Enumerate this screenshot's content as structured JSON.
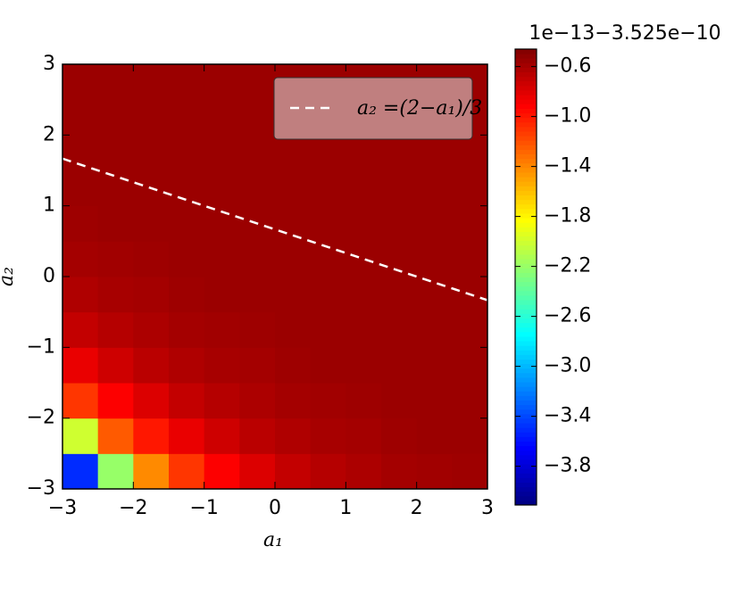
{
  "chart_data": {
    "type": "heatmap",
    "xlabel": "a₁",
    "ylabel": "a₂",
    "xlim": [
      -3,
      3
    ],
    "ylim": [
      -3,
      3
    ],
    "xticks": [
      {
        "value": -3,
        "label": "−3"
      },
      {
        "value": -2,
        "label": "−2"
      },
      {
        "value": -1,
        "label": "−1"
      },
      0,
      1,
      2,
      3
    ],
    "yticks": [
      {
        "value": -3,
        "label": "−3"
      },
      {
        "value": -2,
        "label": "−2"
      },
      {
        "value": -1,
        "label": "−1"
      },
      0,
      1,
      2,
      3
    ],
    "colormap": "jet",
    "clim": [
      -4.11,
      -0.46
    ],
    "colorbar_offset": "1e−13−3.525e−10",
    "colorbar_ticks": [
      {
        "value": -0.6,
        "label": "−0.6"
      },
      {
        "value": -1.0,
        "label": "−1.0"
      },
      {
        "value": -1.4,
        "label": "−1.4"
      },
      {
        "value": -1.8,
        "label": "−1.8"
      },
      {
        "value": -2.2,
        "label": "−2.2"
      },
      {
        "value": -2.6,
        "label": "−2.6"
      },
      {
        "value": -3.0,
        "label": "−3.0"
      },
      {
        "value": -3.4,
        "label": "−3.4"
      },
      {
        "value": -3.8,
        "label": "−3.8"
      }
    ],
    "z": [
      [
        -3.5,
        -2.2,
        -1.41,
        -1.11,
        -0.91,
        -0.79,
        -0.7,
        -0.65,
        -0.62,
        -0.59,
        -0.58,
        -0.57
      ],
      [
        -2.0,
        -1.24,
        -1.0,
        -0.84,
        -0.74,
        -0.67,
        -0.63,
        -0.6,
        -0.59,
        -0.57,
        -0.56,
        -0.56
      ],
      [
        -1.11,
        -0.91,
        -0.79,
        -0.7,
        -0.65,
        -0.62,
        -0.59,
        -0.58,
        -0.57,
        -0.56,
        -0.56,
        -0.56
      ],
      [
        -0.84,
        -0.74,
        -0.67,
        -0.63,
        -0.6,
        -0.59,
        -0.57,
        -0.56,
        -0.56,
        -0.56,
        -0.56,
        -0.56
      ],
      [
        -0.7,
        -0.65,
        -0.62,
        -0.59,
        -0.58,
        -0.57,
        -0.56,
        -0.56,
        -0.56,
        -0.56,
        -0.56,
        -0.56
      ],
      [
        -0.63,
        -0.6,
        -0.59,
        -0.57,
        -0.56,
        -0.56,
        -0.56,
        -0.56,
        -0.56,
        -0.56,
        -0.56,
        -0.56
      ],
      [
        -0.59,
        -0.58,
        -0.57,
        -0.56,
        -0.56,
        -0.56,
        -0.56,
        -0.56,
        -0.56,
        -0.56,
        -0.56,
        -0.56
      ],
      [
        -0.57,
        -0.56,
        -0.56,
        -0.56,
        -0.56,
        -0.56,
        -0.56,
        -0.56,
        -0.56,
        -0.56,
        -0.56,
        -0.56
      ],
      [
        -0.56,
        -0.56,
        -0.56,
        -0.56,
        -0.56,
        -0.56,
        -0.56,
        -0.56,
        -0.56,
        -0.56,
        -0.56,
        -0.56
      ],
      [
        -0.56,
        -0.56,
        -0.56,
        -0.56,
        -0.56,
        -0.56,
        -0.56,
        -0.56,
        -0.56,
        -0.56,
        -0.56,
        -0.56
      ],
      [
        -0.56,
        -0.56,
        -0.56,
        -0.56,
        -0.56,
        -0.56,
        -0.56,
        -0.56,
        -0.56,
        -0.56,
        -0.56,
        -0.56
      ],
      [
        -0.56,
        -0.56,
        -0.56,
        -0.56,
        -0.56,
        -0.56,
        -0.56,
        -0.56,
        -0.56,
        -0.56,
        -0.56,
        -0.56
      ]
    ],
    "series": [
      {
        "name": "a₂ =(2−a₁)/3",
        "color": "#ffffff",
        "dashed": true,
        "x": [
          -3,
          3
        ],
        "values": [
          1.667,
          -0.333
        ]
      }
    ],
    "legend": "upper right"
  }
}
